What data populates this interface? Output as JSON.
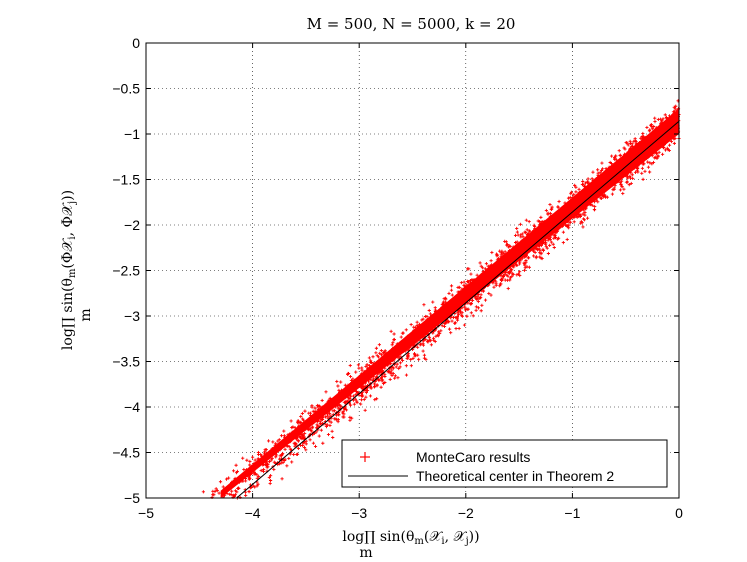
{
  "chart_data": {
    "type": "scatter",
    "title": "M = 500, N = 5000, k = 20",
    "xlabel": "log ∏_m sin(θ_m(𝒳_i, 𝒳_j))",
    "ylabel": "log ∏_m sin(θ_m(ΦX_i, ΦX_j))",
    "xlim": [
      -5,
      0
    ],
    "ylim": [
      -5,
      0
    ],
    "xticks": [
      -5,
      -4,
      -3,
      -2,
      -1,
      0
    ],
    "yticks": [
      0,
      -0.5,
      -1,
      -1.5,
      -2,
      -2.5,
      -3,
      -3.5,
      -4,
      -4.5,
      -5
    ],
    "grid": true,
    "legend_position": "bottom-right",
    "series": [
      {
        "name": "MonteCaro results",
        "kind": "scatter",
        "marker": "+",
        "color": "#ff0000",
        "x_range": [
          -4.55,
          0
        ],
        "band": {
          "slope": 0.97,
          "intercept": -0.86,
          "spread": 0.2
        }
      },
      {
        "name": "Theoretical center in Theorem 2",
        "kind": "line",
        "color": "#000000",
        "x": [
          -4.15,
          0
        ],
        "y": [
          -5,
          -0.86
        ]
      }
    ]
  }
}
